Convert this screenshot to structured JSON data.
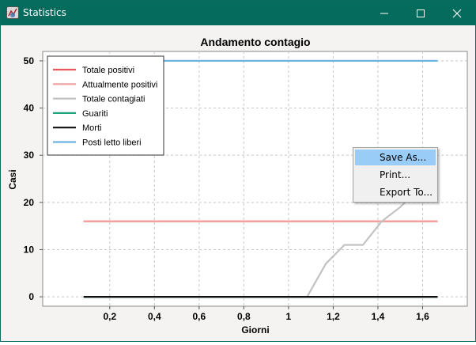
{
  "window": {
    "title": "Statistics",
    "controls": [
      "minimize",
      "maximize",
      "close"
    ]
  },
  "colors": {
    "titlebar": "#046b5d",
    "plot_background": "#ffffff",
    "menu_highlight": "#99ccf6"
  },
  "chart_data": {
    "type": "line",
    "title": "Andamento contagio",
    "xlabel": "Giorni",
    "ylabel": "Casi",
    "xlim": [
      -0.1,
      1.8
    ],
    "ylim": [
      -2,
      52
    ],
    "x_ticks": [
      0.2,
      0.4,
      0.6,
      0.8,
      1.0,
      1.2,
      1.4,
      1.6
    ],
    "x_tick_labels": [
      "0,2",
      "0,4",
      "0,6",
      "0,8",
      "1",
      "1,2",
      "1,4",
      "1,6"
    ],
    "y_ticks": [
      0,
      10,
      20,
      30,
      40,
      50
    ],
    "y_tick_labels": [
      "0",
      "10",
      "20",
      "30",
      "40",
      "50"
    ],
    "grid": true,
    "legend_position": "top-left",
    "x": [
      0.083,
      0.167,
      0.25,
      0.333,
      0.417,
      0.5,
      0.583,
      0.667,
      0.75,
      0.833,
      0.917,
      1.0,
      1.083,
      1.167,
      1.25,
      1.333,
      1.417,
      1.5,
      1.583,
      1.667
    ],
    "series": [
      {
        "name": "Totale positivi",
        "color": "#e8595f",
        "values": [
          16,
          16,
          16,
          16,
          16,
          16,
          16,
          16,
          16,
          16,
          16,
          16,
          16,
          16,
          16,
          16,
          16,
          16,
          16,
          16
        ]
      },
      {
        "name": "Attualmente positivi",
        "color": "#f3a09e",
        "values": [
          16,
          16,
          16,
          16,
          16,
          16,
          16,
          16,
          16,
          16,
          16,
          16,
          16,
          16,
          16,
          16,
          16,
          16,
          16,
          16
        ]
      },
      {
        "name": "Totale contagiati",
        "color": "#c2c2c2",
        "values": [
          0,
          0,
          0,
          0,
          0,
          0,
          0,
          0,
          0,
          0,
          0,
          0,
          0,
          7,
          11,
          11,
          16,
          19,
          23,
          24
        ]
      },
      {
        "name": "Guariti",
        "color": "#1fa37a",
        "values": [
          0,
          0,
          0,
          0,
          0,
          0,
          0,
          0,
          0,
          0,
          0,
          0,
          0,
          0,
          0,
          0,
          0,
          0,
          0,
          0
        ]
      },
      {
        "name": "Morti",
        "color": "#111111",
        "values": [
          0,
          0,
          0,
          0,
          0,
          0,
          0,
          0,
          0,
          0,
          0,
          0,
          0,
          0,
          0,
          0,
          0,
          0,
          0,
          0
        ]
      },
      {
        "name": "Posti letto liberi",
        "color": "#6bb5e0",
        "values": [
          50,
          50,
          50,
          50,
          50,
          50,
          50,
          50,
          50,
          50,
          50,
          50,
          50,
          50,
          50,
          50,
          50,
          50,
          50,
          50
        ]
      }
    ]
  },
  "context_menu": {
    "items": [
      {
        "label": "Save As...",
        "selected": true
      },
      {
        "label": "Print...",
        "selected": false
      },
      {
        "label": "Export To...",
        "selected": false
      }
    ]
  }
}
